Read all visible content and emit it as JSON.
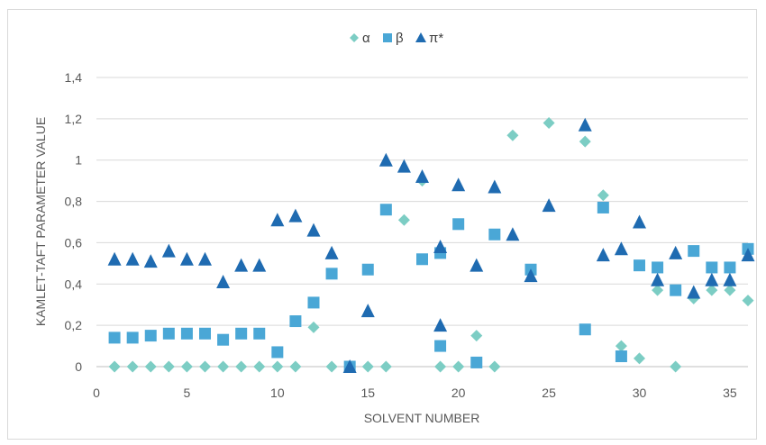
{
  "chart_data": {
    "type": "scatter",
    "xlabel": "SOLVENT NUMBER",
    "ylabel": "KAMLET-TAFT PARAMETER VALUE",
    "xlim": [
      0,
      36
    ],
    "ylim": [
      0,
      1.4
    ],
    "x_ticks": [
      "0",
      "5",
      "10",
      "15",
      "20",
      "25",
      "30",
      "35"
    ],
    "y_ticks": [
      "0",
      "0,2",
      "0,4",
      "0,6",
      "0,8",
      "1",
      "1,2",
      "1,4"
    ],
    "grid": "horizontal",
    "legend_position": "top",
    "series": [
      {
        "name": "α",
        "marker": "diamond",
        "color": "#7ccdc4",
        "points": [
          [
            1,
            0
          ],
          [
            2,
            0
          ],
          [
            3,
            0
          ],
          [
            4,
            0
          ],
          [
            5,
            0
          ],
          [
            6,
            0
          ],
          [
            7,
            0
          ],
          [
            8,
            0
          ],
          [
            9,
            0
          ],
          [
            10,
            0
          ],
          [
            11,
            0
          ],
          [
            12,
            0.19
          ],
          [
            13,
            0
          ],
          [
            14,
            0
          ],
          [
            15,
            0
          ],
          [
            16,
            0
          ],
          [
            17,
            0.71
          ],
          [
            18,
            0.9
          ],
          [
            19,
            0
          ],
          [
            20,
            0
          ],
          [
            21,
            0.15
          ],
          [
            22,
            0
          ],
          [
            23,
            1.12
          ],
          [
            25,
            1.18
          ],
          [
            27,
            1.09
          ],
          [
            28,
            0.83
          ],
          [
            29,
            0.1
          ],
          [
            30,
            0.04
          ],
          [
            31,
            0.37
          ],
          [
            32,
            0
          ],
          [
            33,
            0.33
          ],
          [
            34,
            0.37
          ],
          [
            35,
            0.37
          ],
          [
            36,
            0.32
          ]
        ]
      },
      {
        "name": "β",
        "marker": "square",
        "color": "#4aa7d6",
        "points": [
          [
            1,
            0.14
          ],
          [
            2,
            0.14
          ],
          [
            3,
            0.15
          ],
          [
            4,
            0.16
          ],
          [
            5,
            0.16
          ],
          [
            6,
            0.16
          ],
          [
            7,
            0.13
          ],
          [
            8,
            0.16
          ],
          [
            9,
            0.16
          ],
          [
            10,
            0.07
          ],
          [
            11,
            0.22
          ],
          [
            12,
            0.31
          ],
          [
            13,
            0.45
          ],
          [
            14,
            0
          ],
          [
            15,
            0.47
          ],
          [
            16,
            0.76
          ],
          [
            18,
            0.52
          ],
          [
            19,
            0.55
          ],
          [
            19,
            0.1
          ],
          [
            20,
            0.69
          ],
          [
            21,
            0.02
          ],
          [
            22,
            0.64
          ],
          [
            24,
            0.47
          ],
          [
            27,
            0.18
          ],
          [
            28,
            0.77
          ],
          [
            29,
            0.05
          ],
          [
            30,
            0.49
          ],
          [
            31,
            0.48
          ],
          [
            32,
            0.37
          ],
          [
            33,
            0.56
          ],
          [
            34,
            0.48
          ],
          [
            35,
            0.48
          ],
          [
            36,
            0.57
          ]
        ]
      },
      {
        "name": "π*",
        "marker": "triangle",
        "color": "#1f6bb1",
        "points": [
          [
            1,
            0.52
          ],
          [
            2,
            0.52
          ],
          [
            3,
            0.51
          ],
          [
            4,
            0.56
          ],
          [
            5,
            0.52
          ],
          [
            6,
            0.52
          ],
          [
            7,
            0.41
          ],
          [
            8,
            0.49
          ],
          [
            9,
            0.49
          ],
          [
            10,
            0.71
          ],
          [
            11,
            0.73
          ],
          [
            12,
            0.66
          ],
          [
            13,
            0.55
          ],
          [
            14,
            0
          ],
          [
            15,
            0.27
          ],
          [
            16,
            1.0
          ],
          [
            17,
            0.97
          ],
          [
            18,
            0.92
          ],
          [
            19,
            0.58
          ],
          [
            19,
            0.2
          ],
          [
            20,
            0.88
          ],
          [
            21,
            0.49
          ],
          [
            22,
            0.87
          ],
          [
            23,
            0.64
          ],
          [
            24,
            0.44
          ],
          [
            25,
            0.78
          ],
          [
            27,
            1.17
          ],
          [
            28,
            0.54
          ],
          [
            29,
            0.57
          ],
          [
            30,
            0.7
          ],
          [
            31,
            0.42
          ],
          [
            32,
            0.55
          ],
          [
            33,
            0.36
          ],
          [
            34,
            0.42
          ],
          [
            35,
            0.42
          ],
          [
            36,
            0.54
          ]
        ]
      }
    ]
  }
}
